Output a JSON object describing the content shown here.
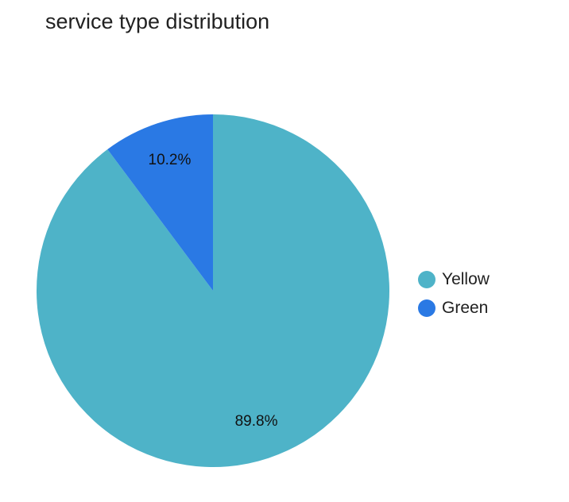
{
  "chart_data": {
    "type": "pie",
    "title": "service type distribution",
    "slices": [
      {
        "name": "Yellow",
        "value": 89.8,
        "label": "89.8%",
        "color": "#4eb3c8"
      },
      {
        "name": "Green",
        "value": 10.2,
        "label": "10.2%",
        "color": "#2a79e4"
      }
    ],
    "legend_placement": "right"
  }
}
